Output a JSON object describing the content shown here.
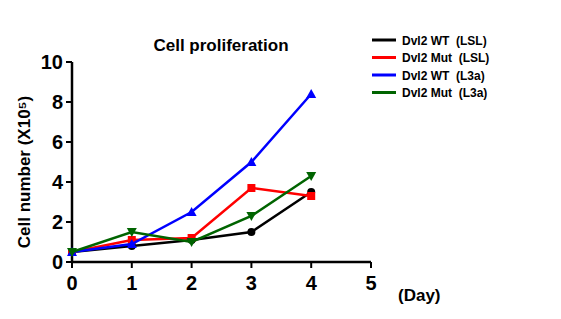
{
  "chart_data": {
    "type": "line",
    "title": "Cell proliferation",
    "x_label": "(Day)",
    "y_label": "Cell number (X10⁵)",
    "x": [
      0,
      1,
      2,
      3,
      4
    ],
    "xlim": [
      0,
      5
    ],
    "xticks": [
      0,
      1,
      2,
      3,
      4,
      5
    ],
    "ylim": [
      0,
      10
    ],
    "yticks": [
      0,
      2,
      4,
      6,
      8,
      10
    ],
    "grid": false,
    "legend": "top-right",
    "series": [
      {
        "name": "Dvl2 WT  (LSL)",
        "color": "#000000",
        "marker": "circle",
        "values": [
          0.5,
          0.8,
          1.1,
          1.5,
          3.5
        ]
      },
      {
        "name": "Dvl2 Mut  (LSL)",
        "color": "#ff0000",
        "marker": "square",
        "values": [
          0.5,
          1.1,
          1.2,
          3.7,
          3.3
        ]
      },
      {
        "name": "Dvl2 WT  (L3a)",
        "color": "#0000ff",
        "marker": "triangle",
        "values": [
          0.5,
          0.9,
          2.5,
          5.0,
          8.4
        ]
      },
      {
        "name": "Dvl2 Mut  (L3a)",
        "color": "#006400",
        "marker": "triangle-down",
        "values": [
          0.5,
          1.5,
          1.0,
          2.3,
          4.3
        ]
      }
    ]
  }
}
